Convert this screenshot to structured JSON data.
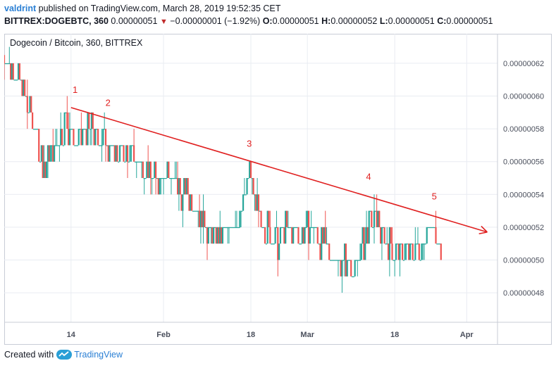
{
  "header": {
    "author": "valdrint",
    "published_text": "published on TradingView.com, March 28, 2019 19:52:35 CET",
    "symbol": "BITTREX:DOGEBTC, 360",
    "last": "0.00000051",
    "change": "−0.00000001 (−1.92%)",
    "o_label": "O:",
    "o_value": "0.00000051",
    "h_label": "H:",
    "h_value": "0.00000052",
    "l_label": "L:",
    "l_value": "0.00000051",
    "c_label": "C:",
    "c_value": "0.00000051"
  },
  "footer": {
    "created_with": "Created with",
    "brand": "TradingView"
  },
  "colors": {
    "up": "#26a69a",
    "down": "#ef5350",
    "trendline": "#e02020",
    "grid": "#e9ecf2",
    "text": "#131722",
    "axis_text": "#4a4f5c"
  },
  "chart_data": {
    "type": "candlestick",
    "title": "Dogecoin / Bitcoin, 360, BITTREX",
    "y_ticks": [
      "0.00000048",
      "0.00000050",
      "0.00000052",
      "0.00000054",
      "0.00000056",
      "0.00000058",
      "0.00000060",
      "0.00000062"
    ],
    "y_tick_values": [
      48,
      50,
      52,
      54,
      56,
      58,
      60,
      62
    ],
    "y_unit_scale": 1e-08,
    "ylim": [
      46.2,
      63.8
    ],
    "x_range_days": [
      1,
      97
    ],
    "x_ticks": [
      {
        "label": "14",
        "day": 14
      },
      {
        "label": "Feb",
        "day": 32
      },
      {
        "label": "18",
        "day": 49
      },
      {
        "label": "Mar",
        "day": 60
      },
      {
        "label": "18",
        "day": 77
      },
      {
        "label": "Apr",
        "day": 91
      }
    ],
    "price_path": [
      {
        "day": 1,
        "price": 62.5
      },
      {
        "day": 3,
        "price": 61.5
      },
      {
        "day": 5,
        "price": 60
      },
      {
        "day": 7,
        "price": 58
      },
      {
        "day": 9,
        "price": 55.5
      },
      {
        "day": 11,
        "price": 57
      },
      {
        "day": 13,
        "price": 58.5
      },
      {
        "day": 15,
        "price": 57
      },
      {
        "day": 17,
        "price": 58
      },
      {
        "day": 20,
        "price": 57.5
      },
      {
        "day": 23,
        "price": 56.5
      },
      {
        "day": 27,
        "price": 56
      },
      {
        "day": 30,
        "price": 55
      },
      {
        "day": 33,
        "price": 55.5
      },
      {
        "day": 36,
        "price": 54
      },
      {
        "day": 38,
        "price": 53.5
      },
      {
        "day": 40,
        "price": 52.5
      },
      {
        "day": 42,
        "price": 51
      },
      {
        "day": 45,
        "price": 52
      },
      {
        "day": 47,
        "price": 52.5
      },
      {
        "day": 49,
        "price": 55.5
      },
      {
        "day": 50,
        "price": 53
      },
      {
        "day": 52,
        "price": 52
      },
      {
        "day": 54,
        "price": 51
      },
      {
        "day": 56,
        "price": 52
      },
      {
        "day": 58,
        "price": 51.5
      },
      {
        "day": 61,
        "price": 52
      },
      {
        "day": 64,
        "price": 50.5
      },
      {
        "day": 67,
        "price": 50
      },
      {
        "day": 69,
        "price": 49.5
      },
      {
        "day": 71,
        "price": 51
      },
      {
        "day": 73,
        "price": 52.5
      },
      {
        "day": 75,
        "price": 51.5
      },
      {
        "day": 77,
        "price": 50.5
      },
      {
        "day": 80,
        "price": 50.5
      },
      {
        "day": 82,
        "price": 51
      },
      {
        "day": 84,
        "price": 52
      },
      {
        "day": 86,
        "price": 51
      }
    ],
    "trendline": {
      "x1_day": 14,
      "y1": 59.3,
      "x2_day": 95,
      "y2": 51.7,
      "arrow": true
    },
    "annotations": [
      {
        "label": "1",
        "day": 14.3,
        "price": 60.2
      },
      {
        "label": "2",
        "day": 20.7,
        "price": 59.4
      },
      {
        "label": "3",
        "day": 48.2,
        "price": 56.9
      },
      {
        "label": "4",
        "day": 71.4,
        "price": 54.9
      },
      {
        "label": "5",
        "day": 84.2,
        "price": 53.7
      }
    ]
  }
}
